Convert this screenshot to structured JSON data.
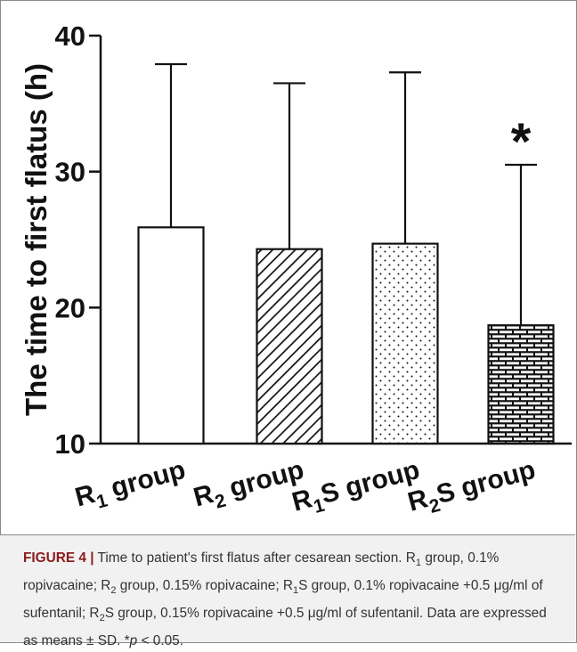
{
  "chart_data": {
    "type": "bar",
    "ylabel": "The time to first flatus (h)",
    "ylim": [
      10,
      40
    ],
    "yticks": [
      10,
      20,
      30,
      40
    ],
    "categories": [
      {
        "label": "R",
        "sub": "1",
        "rest": " group"
      },
      {
        "label": "R",
        "sub": "2",
        "rest": " group"
      },
      {
        "label": "R",
        "sub": "1",
        "rest": "S group"
      },
      {
        "label": "R",
        "sub": "2",
        "rest": "S group"
      }
    ],
    "values": [
      25.9,
      24.3,
      24.7,
      18.7
    ],
    "sd": [
      12.0,
      12.2,
      12.6,
      11.8
    ],
    "patterns": [
      "none",
      "diagonal",
      "dots",
      "bricks"
    ],
    "significance": [
      {
        "index": 3,
        "marker": "*"
      }
    ],
    "grid": false,
    "legend": "none"
  },
  "caption": {
    "figure_label": "FIGURE 4 |",
    "segments": [
      {
        "t": " Time to patient's first flatus after cesarean section. R"
      },
      {
        "t": "1",
        "sub": true
      },
      {
        "t": " group, 0.1% ropivacaine; R"
      },
      {
        "t": "2",
        "sub": true
      },
      {
        "t": " group, 0.15% ropivacaine; R"
      },
      {
        "t": "1",
        "sub": true
      },
      {
        "t": "S group, 0.1% ropivacaine +0.5 μg/ml of sufentanil; R"
      },
      {
        "t": "2",
        "sub": true
      },
      {
        "t": "S group, 0.15% ropivacaine +0.5 μg/ml of sufentanil. Data are expressed as means ± SD. *"
      },
      {
        "t": "p",
        "italic": true
      },
      {
        "t": " < 0.05."
      }
    ]
  }
}
